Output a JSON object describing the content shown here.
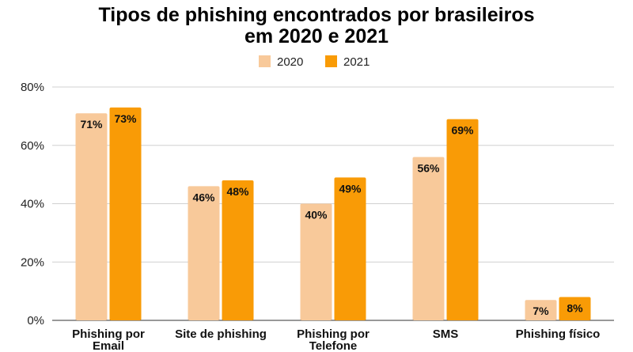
{
  "chart_data": {
    "type": "bar",
    "title": [
      "Tipos de phishing encontrados por brasileiros",
      "em 2020 e 2021"
    ],
    "xlabel": "",
    "ylabel": "",
    "categories": [
      [
        "Phishing por",
        "Email"
      ],
      [
        "Site de phishing"
      ],
      [
        "Phishing por",
        "Telefone"
      ],
      [
        "SMS"
      ],
      [
        "Phishing físico"
      ]
    ],
    "series": [
      {
        "name": "2020",
        "color": "#f8c99a",
        "values": [
          71,
          46,
          40,
          56,
          7
        ],
        "labels": [
          "71%",
          "46%",
          "40%",
          "56%",
          "7%"
        ]
      },
      {
        "name": "2021",
        "color": "#f99b06",
        "values": [
          73,
          48,
          49,
          69,
          8
        ],
        "labels": [
          "73%",
          "48%",
          "49%",
          "69%",
          "8%"
        ]
      }
    ],
    "ylim": [
      0,
      80
    ],
    "yticks": [
      0,
      20,
      40,
      60,
      80
    ],
    "ytick_labels": [
      "0%",
      "20%",
      "40%",
      "60%",
      "80%"
    ],
    "grid": true,
    "legend_position": "top-center"
  }
}
